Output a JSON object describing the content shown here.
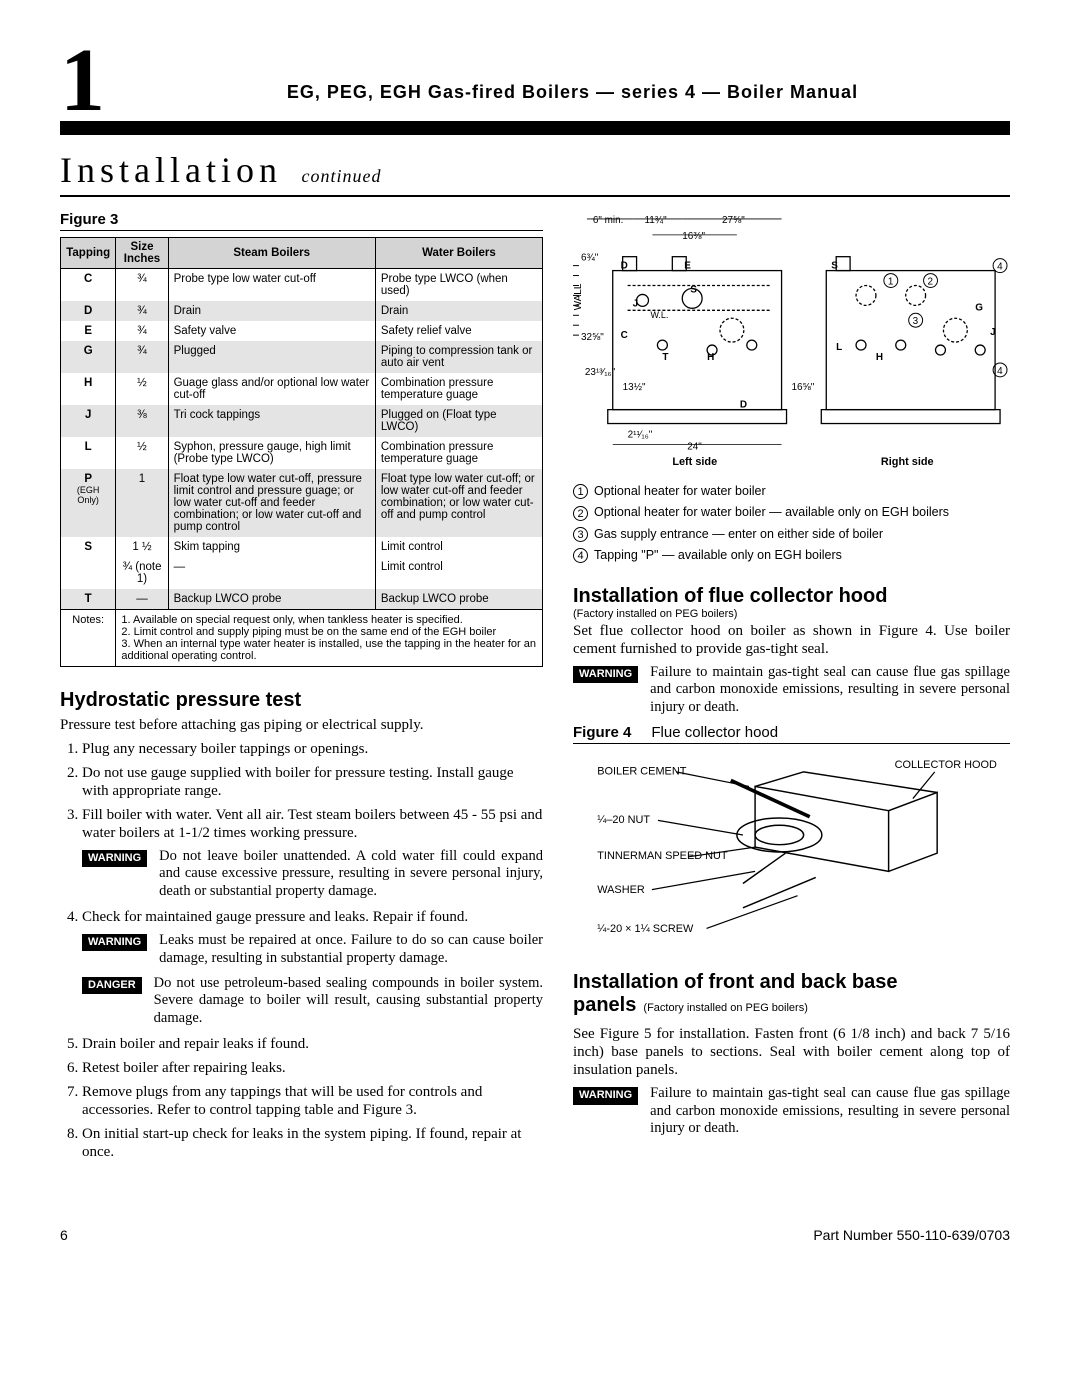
{
  "header": {
    "page_number_big": "1",
    "title_line": "EG, PEG, EGH Gas-fired Boilers — series 4 — Boiler Manual"
  },
  "main_title": "Installation",
  "main_title_suffix": "continued",
  "figure3": {
    "label": "Figure 3",
    "columns": [
      "Tapping",
      "Size Inches",
      "Steam Boilers",
      "Water Boilers"
    ],
    "rows": [
      {
        "t": "C",
        "size": "¾",
        "steam": "Probe type low water cut-off",
        "water": "Probe type LWCO (when used)",
        "alt": false
      },
      {
        "t": "D",
        "size": "¾",
        "steam": "Drain",
        "water": "Drain",
        "alt": true
      },
      {
        "t": "E",
        "size": "¾",
        "steam": "Safety valve",
        "water": "Safety relief valve",
        "alt": false
      },
      {
        "t": "G",
        "size": "¾",
        "steam": "Plugged",
        "water": "Piping to compression tank or auto air vent",
        "alt": true
      },
      {
        "t": "H",
        "size": "½",
        "steam": "Guage glass and/or optional low water cut-off",
        "water": "Combination pressure temperature guage",
        "alt": false
      },
      {
        "t": "J",
        "size": "⅜",
        "steam": "Tri cock tappings",
        "water": "Plugged on (Float type LWCO)",
        "alt": true
      },
      {
        "t": "L",
        "size": "½",
        "steam": "Syphon, pressure gauge, high limit (Probe type LWCO)",
        "water": "Combination pressure temperature guage",
        "alt": false
      },
      {
        "t": "P",
        "sub": "(EGH Only)",
        "size": "1",
        "steam": "Float type low water cut-off, pressure limit control and pressure guage; or low water cut-off and feeder combination; or low water cut-off and pump control",
        "water": "Float type low water cut-off; or low water cut-off and feeder combination; or low water cut-off and pump control",
        "alt": true
      },
      {
        "t": "S",
        "size": "1 ½",
        "steam": "Skim tapping",
        "water": "Limit control",
        "alt": false
      },
      {
        "t": "",
        "size": "¾ (note 1)",
        "steam": "—",
        "water": "Limit control",
        "alt": false
      },
      {
        "t": "T",
        "size": "—",
        "steam": "Backup LWCO probe",
        "water": "Backup LWCO probe",
        "alt": true
      }
    ],
    "notes_label": "Notes:",
    "notes": [
      "1. Available on special request only, when tankless heater is specified.",
      "2. Limit control and supply piping must be on the same end of the EGH boiler",
      "3. When an internal type water heater is installed, use the tapping in the heater for an additional operating control."
    ]
  },
  "hydro": {
    "heading": "Hydrostatic pressure test",
    "intro": "Pressure test before attaching gas piping or electrical supply.",
    "steps": [
      "Plug any necessary boiler tappings or openings.",
      "Do not use gauge supplied with boiler for pressure testing. Install gauge with appropriate range.",
      "Fill boiler with water. Vent all air. Test steam boilers between   45 - 55 psi and water boilers at 1-1/2 times working pressure."
    ],
    "warn1": "Do not leave boiler unattended. A cold water fill could expand and cause excessive pressure, resulting in severe personal injury, death or substantial property damage.",
    "step4": "Check for maintained gauge pressure and leaks. Repair if found.",
    "warn2": "Leaks must be repaired at once. Failure to do so can cause boiler damage, resulting in substantial property damage.",
    "danger1": "Do not use petroleum-based sealing compounds in boiler system. Severe damage to boiler will result, causing substantial property damage.",
    "steps_cont": [
      "Drain boiler and repair leaks if found.",
      "Retest boiler after repairing leaks.",
      "Remove plugs from any tappings that will be used for controls and accessories. Refer to control tapping table and Figure 3.",
      "On initial start-up check for leaks in the system piping. If found, repair at once."
    ]
  },
  "diagram": {
    "dimensions": {
      "top_min": "6\" min.",
      "top_a": "11¾\"",
      "top_b": "27⅝\"",
      "inner": "16⅜\"",
      "left_6_34": "6¾\"",
      "height": "32⅝\"",
      "mid_h": "23¹³⁄₁₆\"",
      "inner_h": "13½\"",
      "right_w": "16⅝\"",
      "bottom_a": "2¹¹⁄₁₆\"",
      "bottom_b": "24\""
    },
    "labels": {
      "wall": "WALL",
      "wl": "W.L.",
      "D": "D",
      "E": "E",
      "S": "S",
      "J": "J",
      "C": "C",
      "T": "T",
      "H": "H",
      "L": "L",
      "G": "G"
    },
    "left_caption": "Left side",
    "right_caption": "Right side",
    "legend": [
      "Optional heater for water boiler",
      "Optional heater for water boiler — available only on EGH boilers",
      "Gas supply entrance — enter on either side of boiler",
      "Tapping \"P\" — available only on EGH boilers"
    ]
  },
  "flue": {
    "heading": "Installation of flue collector hood",
    "subnote": "(Factory installed on PEG boilers)",
    "body": "Set flue collector hood on boiler as shown in Figure 4. Use boiler cement furnished to provide gas-tight seal.",
    "warn": "Failure to maintain gas-tight seal can cause flue gas spillage and carbon monoxide emissions, resulting in  severe personal injury or death.",
    "fig4_label": "Figure 4",
    "fig4_caption": "Flue collector hood",
    "fig4_annotations": {
      "boiler_cement": "BOILER CEMENT",
      "collector_hood": "COLLECTOR HOOD",
      "nut": "¼–20 NUT",
      "tinnerman": "TINNERMAN SPEED NUT",
      "washer": "WASHER",
      "screw": "¼-20 × 1¼ SCREW"
    }
  },
  "base": {
    "heading": "Installation of front and back base",
    "heading2": "panels",
    "subnote": "(Factory installed on PEG boilers)",
    "body": "See Figure 5 for installation. Fasten front (6 1/8 inch) and back 7 5/16 inch) base panels to sections. Seal with boiler cement along top of insulation panels.",
    "warn": "Failure to maintain gas-tight seal can cause flue gas spillage and carbon monoxide emissions, resulting in severe personal injury or death."
  },
  "labels": {
    "warning": "WARNING",
    "danger": "DANGER"
  },
  "footer": {
    "page": "6",
    "part": "Part Number 550-110-639/0703"
  },
  "style": {
    "colors": {
      "bg": "#ffffff",
      "text": "#000000",
      "table_header_bg": "#d4d4d4",
      "table_alt_bg": "#e4e4e4",
      "tag_bg": "#000000",
      "tag_fg": "#ffffff"
    },
    "fonts": {
      "body": "Georgia, serif",
      "ui": "Arial, Helvetica, sans-serif"
    },
    "sizes": {
      "big_number": 90,
      "install_title": 36,
      "section_h3": 20,
      "body": 15,
      "table": 11.5
    }
  }
}
